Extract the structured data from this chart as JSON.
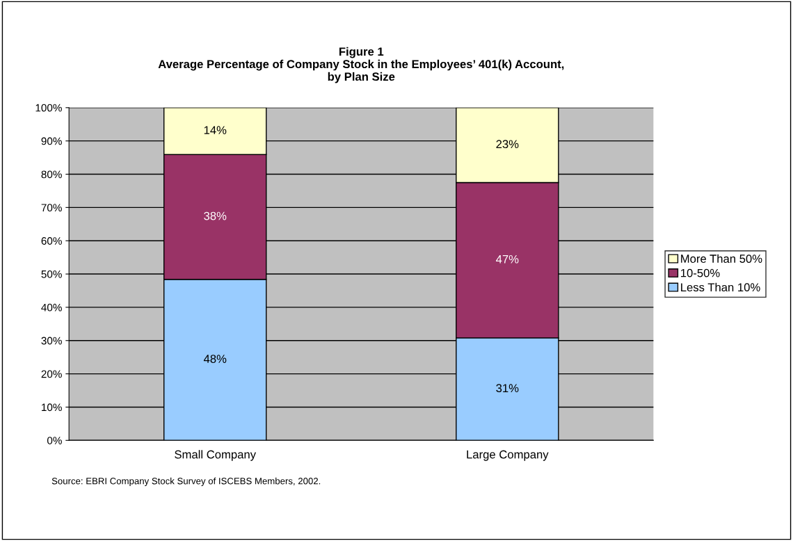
{
  "chart_data": {
    "type": "bar",
    "stacked": true,
    "title": "Figure 1\nAverage Percentage of Company Stock in the Employees’ 401(k) Account,\nby Plan Size",
    "categories": [
      "Small Company",
      "Large Company"
    ],
    "series": [
      {
        "name": "Less Than 10%",
        "color": "#99ccff",
        "values": [
          48.4,
          30.8
        ],
        "value_labels": [
          "48%",
          "31%"
        ]
      },
      {
        "name": "10-50%",
        "color": "#993366",
        "values": [
          37.5,
          46.7
        ],
        "value_labels": [
          "38%",
          "47%"
        ]
      },
      {
        "name": "More Than 50%",
        "color": "#ffffcc",
        "values": [
          14.1,
          22.5
        ],
        "value_labels": [
          "14%",
          "23%"
        ]
      }
    ],
    "ylim": [
      0,
      100
    ],
    "yticks": [
      {
        "value": 0,
        "label": "0%"
      },
      {
        "value": 10,
        "label": "10%"
      },
      {
        "value": 20,
        "label": "20%"
      },
      {
        "value": 30,
        "label": "30%"
      },
      {
        "value": 40,
        "label": "40%"
      },
      {
        "value": 50,
        "label": "50%"
      },
      {
        "value": 60,
        "label": "60%"
      },
      {
        "value": 70,
        "label": "70%"
      },
      {
        "value": 80,
        "label": "80%"
      },
      {
        "value": 90,
        "label": "90%"
      },
      {
        "value": 100,
        "label": "100%"
      }
    ],
    "grid": "y",
    "legend": "right",
    "annotations": [
      "Source: EBRI Company Stock Survey of ISCEBS Members, 2002."
    ]
  }
}
